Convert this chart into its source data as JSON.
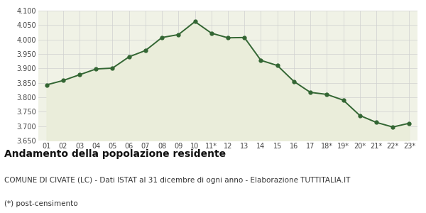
{
  "x_labels": [
    "01",
    "02",
    "03",
    "04",
    "05",
    "06",
    "07",
    "08",
    "09",
    "10",
    "11*",
    "12",
    "13",
    "14",
    "15",
    "16",
    "17",
    "18*",
    "19*",
    "20*",
    "21*",
    "22*",
    "23*"
  ],
  "y_values": [
    3843,
    3858,
    3878,
    3898,
    3901,
    3940,
    3962,
    4007,
    4017,
    4062,
    4022,
    4006,
    4007,
    3928,
    3910,
    3855,
    3817,
    3810,
    3790,
    3737,
    3713,
    3697,
    3710
  ],
  "ylim": [
    3650,
    4100
  ],
  "yticks": [
    3650,
    3700,
    3750,
    3800,
    3850,
    3900,
    3950,
    4000,
    4050,
    4100
  ],
  "line_color": "#336633",
  "fill_color": "#eaedda",
  "marker_color": "#336633",
  "bg_color": "#ffffff",
  "plot_bg_color": "#f0f2e6",
  "grid_color": "#d0d0d0",
  "title": "Andamento della popolazione residente",
  "subtitle": "COMUNE DI CIVATE (LC) - Dati ISTAT al 31 dicembre di ogni anno - Elaborazione TUTTITALIA.IT",
  "footnote": "(*) post-censimento",
  "title_fontsize": 10,
  "subtitle_fontsize": 7.5,
  "footnote_fontsize": 7.5,
  "tick_fontsize": 7,
  "marker_size": 3.5,
  "line_width": 1.4
}
